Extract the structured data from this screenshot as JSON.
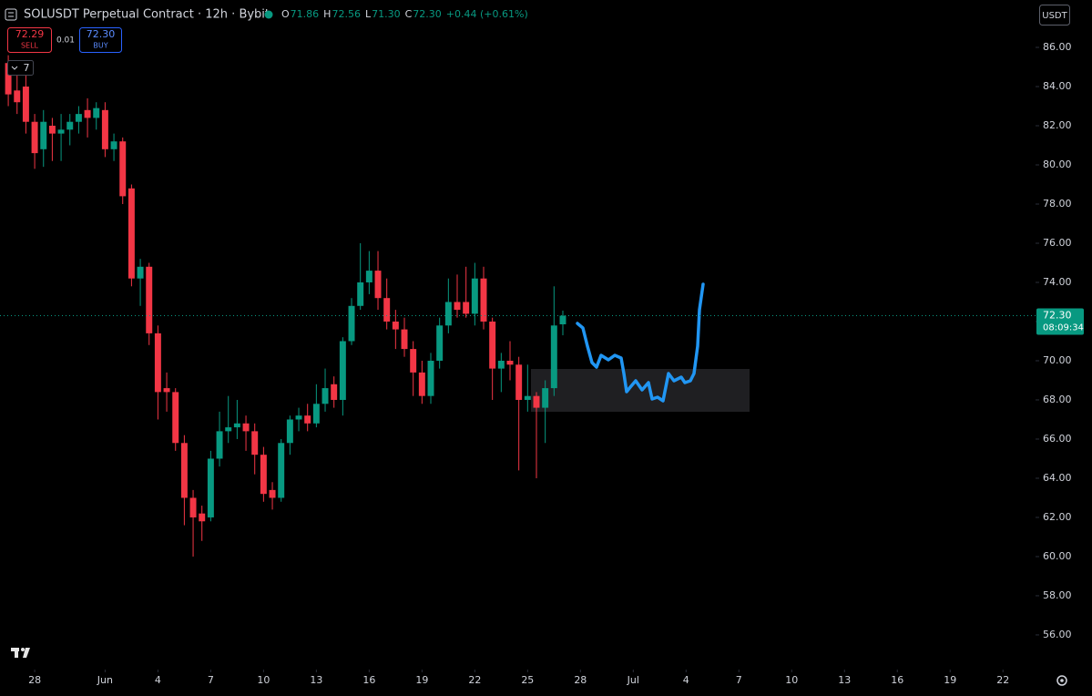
{
  "chart_data": {
    "type": "candlestick",
    "title": "SOLUSDT Perpetual Contract · 12h · Bybit",
    "ohlc": [
      {
        "key": "O",
        "value": "71.86"
      },
      {
        "key": "H",
        "value": "72.56"
      },
      {
        "key": "L",
        "value": "71.30"
      },
      {
        "key": "C",
        "value": "72.30"
      }
    ],
    "change": "+0.44 (+0.61%)",
    "sell": {
      "price": "72.29",
      "label": "SELL"
    },
    "spread": "0.01",
    "buy": {
      "price": "72.30",
      "label": "BUY"
    },
    "indicator_count": "7",
    "currency": "USDT",
    "last_price": {
      "value": 72.3,
      "label": "72.30"
    },
    "countdown": "08:09:34",
    "up_color": "#089981",
    "down_color": "#f23645",
    "x": [
      -1.5,
      -1,
      -0.5,
      0,
      0.5,
      1,
      1.5,
      2,
      2.5,
      3,
      3.5,
      4,
      4.5,
      5,
      5.5,
      6,
      6.5,
      7,
      7.5,
      8,
      8.5,
      9,
      9.5,
      10,
      10.5,
      11,
      11.5,
      12,
      12.5,
      13,
      13.5,
      14,
      14.5,
      15,
      15.5,
      16,
      16.5,
      17,
      17.5,
      18,
      18.5,
      19,
      19.5,
      20,
      20.5,
      21,
      21.5,
      22,
      22.5,
      23,
      23.5,
      24,
      24.5,
      25,
      25.5,
      26,
      26.5,
      27,
      27.5,
      28,
      28.5,
      29,
      29.5,
      30
    ],
    "open": [
      85.2,
      83.8,
      84.0,
      82.2,
      80.8,
      82.0,
      81.6,
      81.8,
      82.2,
      82.8,
      82.4,
      82.8,
      80.8,
      81.2,
      78.8,
      74.2,
      74.8,
      71.4,
      68.6,
      68.4,
      65.8,
      63.0,
      62.2,
      62.0,
      65.0,
      66.4,
      66.6,
      66.8,
      66.4,
      65.2,
      63.4,
      63.0,
      65.8,
      67.0,
      67.2,
      66.8,
      67.8,
      68.8,
      68.0,
      71.0,
      72.8,
      74.0,
      74.6,
      73.2,
      72.0,
      71.6,
      70.6,
      69.4,
      68.2,
      70.0,
      71.8,
      73.0,
      73.0,
      72.4,
      74.2,
      72.0,
      69.6,
      70.0,
      69.8,
      68.0,
      68.2,
      67.6,
      68.6,
      71.86
    ],
    "high": [
      85.6,
      84.6,
      85.0,
      82.6,
      82.8,
      82.4,
      82.6,
      82.6,
      83.0,
      83.4,
      83.2,
      83.2,
      81.6,
      81.4,
      79.0,
      75.2,
      75.0,
      71.8,
      69.4,
      68.6,
      66.2,
      63.4,
      62.6,
      65.4,
      67.4,
      68.2,
      68.0,
      67.2,
      66.8,
      65.6,
      63.8,
      66.0,
      67.2,
      67.6,
      67.8,
      68.8,
      69.6,
      69.2,
      71.2,
      73.2,
      76.0,
      75.6,
      75.6,
      74.2,
      72.6,
      72.2,
      71.0,
      70.0,
      70.4,
      72.2,
      74.2,
      74.4,
      74.8,
      75.0,
      74.8,
      72.2,
      70.4,
      71.0,
      70.2,
      69.8,
      68.4,
      69.0,
      73.8,
      72.56
    ],
    "low": [
      83.0,
      82.6,
      81.6,
      79.8,
      79.9,
      80.2,
      80.2,
      81.0,
      81.6,
      81.4,
      81.8,
      80.4,
      80.2,
      78.0,
      73.8,
      72.8,
      70.8,
      67.0,
      67.4,
      65.4,
      61.6,
      60.0,
      60.8,
      61.8,
      64.6,
      65.8,
      66.0,
      65.4,
      64.2,
      62.8,
      62.4,
      62.8,
      65.2,
      66.4,
      66.4,
      66.6,
      67.4,
      67.6,
      67.2,
      70.8,
      72.6,
      73.4,
      72.6,
      71.6,
      70.6,
      70.2,
      68.2,
      67.8,
      67.8,
      69.6,
      71.4,
      72.2,
      72.2,
      71.8,
      71.6,
      68.0,
      68.4,
      69.0,
      64.4,
      67.4,
      64.0,
      65.8,
      68.2,
      71.3
    ],
    "close": [
      83.6,
      83.2,
      82.2,
      80.6,
      82.2,
      81.6,
      81.8,
      82.2,
      82.6,
      82.4,
      82.9,
      80.8,
      81.2,
      78.4,
      74.2,
      74.8,
      71.4,
      68.4,
      68.4,
      65.8,
      63.0,
      62.0,
      61.8,
      65.0,
      66.4,
      66.6,
      66.8,
      66.4,
      65.2,
      63.2,
      63.0,
      65.8,
      67.0,
      67.2,
      66.8,
      67.8,
      68.6,
      68.0,
      71.0,
      72.8,
      74.0,
      74.6,
      73.2,
      72.0,
      71.6,
      70.6,
      69.4,
      68.2,
      70.0,
      71.8,
      73.0,
      72.6,
      72.4,
      74.2,
      72.0,
      69.6,
      70.0,
      69.8,
      68.0,
      68.2,
      67.6,
      68.6,
      71.8,
      72.3
    ],
    "xlim": [
      -1.97,
      56.85
    ],
    "xticks": [
      {
        "value": 0,
        "label": "28"
      },
      {
        "value": 4,
        "label": "Jun"
      },
      {
        "value": 7,
        "label": "4"
      },
      {
        "value": 10,
        "label": "7"
      },
      {
        "value": 13,
        "label": "10"
      },
      {
        "value": 16,
        "label": "13"
      },
      {
        "value": 19,
        "label": "16"
      },
      {
        "value": 22,
        "label": "19"
      },
      {
        "value": 25,
        "label": "22"
      },
      {
        "value": 28,
        "label": "25"
      },
      {
        "value": 31,
        "label": "28"
      },
      {
        "value": 34,
        "label": "Jul"
      },
      {
        "value": 37,
        "label": "4"
      },
      {
        "value": 40,
        "label": "7"
      },
      {
        "value": 43,
        "label": "10"
      },
      {
        "value": 46,
        "label": "13"
      },
      {
        "value": 49,
        "label": "16"
      },
      {
        "value": 52,
        "label": "19"
      },
      {
        "value": 55,
        "label": "22"
      }
    ],
    "ylim": [
      54.23,
      88.42
    ],
    "yticks": [
      {
        "value": 56,
        "label": "56.00"
      },
      {
        "value": 58,
        "label": "58.00"
      },
      {
        "value": 60,
        "label": "60.00"
      },
      {
        "value": 62,
        "label": "62.00"
      },
      {
        "value": 64,
        "label": "64.00"
      },
      {
        "value": 66,
        "label": "66.00"
      },
      {
        "value": 68,
        "label": "68.00"
      },
      {
        "value": 70,
        "label": "70.00"
      },
      {
        "value": 72,
        "label": "72.00"
      },
      {
        "value": 74,
        "label": "74.00"
      },
      {
        "value": 76,
        "label": "76.00"
      },
      {
        "value": 78,
        "label": "78.00"
      },
      {
        "value": 80,
        "label": "80.00"
      },
      {
        "value": 82,
        "label": "82.00"
      },
      {
        "value": 84,
        "label": "84.00"
      },
      {
        "value": 86,
        "label": "86.00"
      }
    ]
  }
}
